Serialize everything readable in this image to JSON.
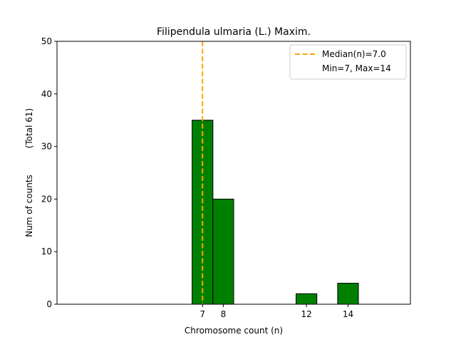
{
  "chart_data": {
    "type": "bar",
    "title": "Filipendula ulmaria (L.) Maxim.",
    "xlabel": "Chromosome count (n)",
    "ylabel": "Num of counts",
    "ylabel_total": "(Total 61)",
    "xlim": [
      0,
      17
    ],
    "ylim": [
      0,
      50
    ],
    "x_ticks": [
      7,
      8,
      12,
      14
    ],
    "y_ticks": [
      0,
      10,
      20,
      30,
      40,
      50
    ],
    "bars": [
      {
        "x": 7,
        "value": 35
      },
      {
        "x": 8,
        "value": 20
      },
      {
        "x": 12,
        "value": 2
      },
      {
        "x": 14,
        "value": 4
      }
    ],
    "median": 7.0,
    "legend": {
      "position": "upper right",
      "entries": [
        "Median(n)=7.0",
        "Min=7, Max=14"
      ]
    },
    "colors": {
      "bar": "#008000",
      "bar_edge": "#000000",
      "median": "#FFA500"
    }
  }
}
